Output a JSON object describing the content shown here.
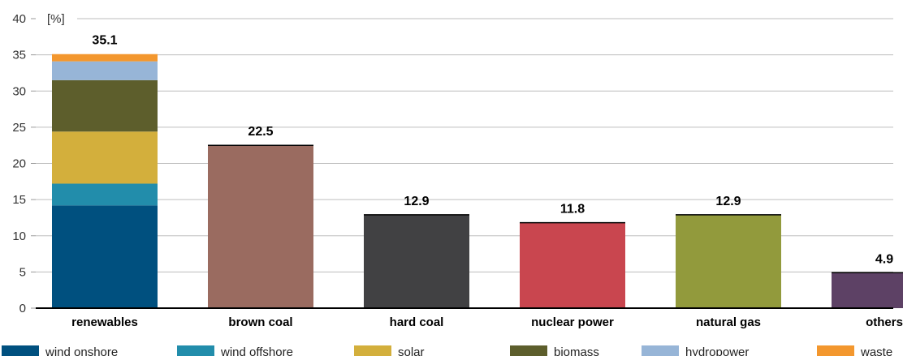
{
  "chart_data": {
    "type": "bar",
    "stacked": true,
    "ylabel": "[%]",
    "ylim": [
      0,
      40
    ],
    "yticks": [
      0,
      5,
      10,
      15,
      20,
      25,
      30,
      35,
      40
    ],
    "grid": true,
    "legend_position": "bottom",
    "categories": [
      "renewables",
      "brown coal",
      "hard coal",
      "nuclear power",
      "natural gas",
      "others"
    ],
    "totals": [
      "35.1",
      "22.5",
      "12.9",
      "11.8",
      "12.9",
      "4.9"
    ],
    "total_values": [
      35.1,
      22.5,
      12.9,
      11.8,
      12.9,
      4.9
    ],
    "bar_colors": [
      "#00507f",
      "#9a6b60",
      "#414143",
      "#c9464f",
      "#929a3c",
      "#5d4165"
    ],
    "renewables_breakdown": [
      {
        "name": "wind onshore",
        "value": 14.2,
        "color": "#00507f"
      },
      {
        "name": "wind offshore",
        "value": 3.0,
        "color": "#228dab"
      },
      {
        "name": "solar",
        "value": 7.2,
        "color": "#d3af3c"
      },
      {
        "name": "biomass",
        "value": 7.1,
        "color": "#5d5e2c"
      },
      {
        "name": "hydropower",
        "value": 2.6,
        "color": "#97b5d7"
      },
      {
        "name": "waste",
        "value": 1.0,
        "color": "#f3972e"
      }
    ]
  }
}
